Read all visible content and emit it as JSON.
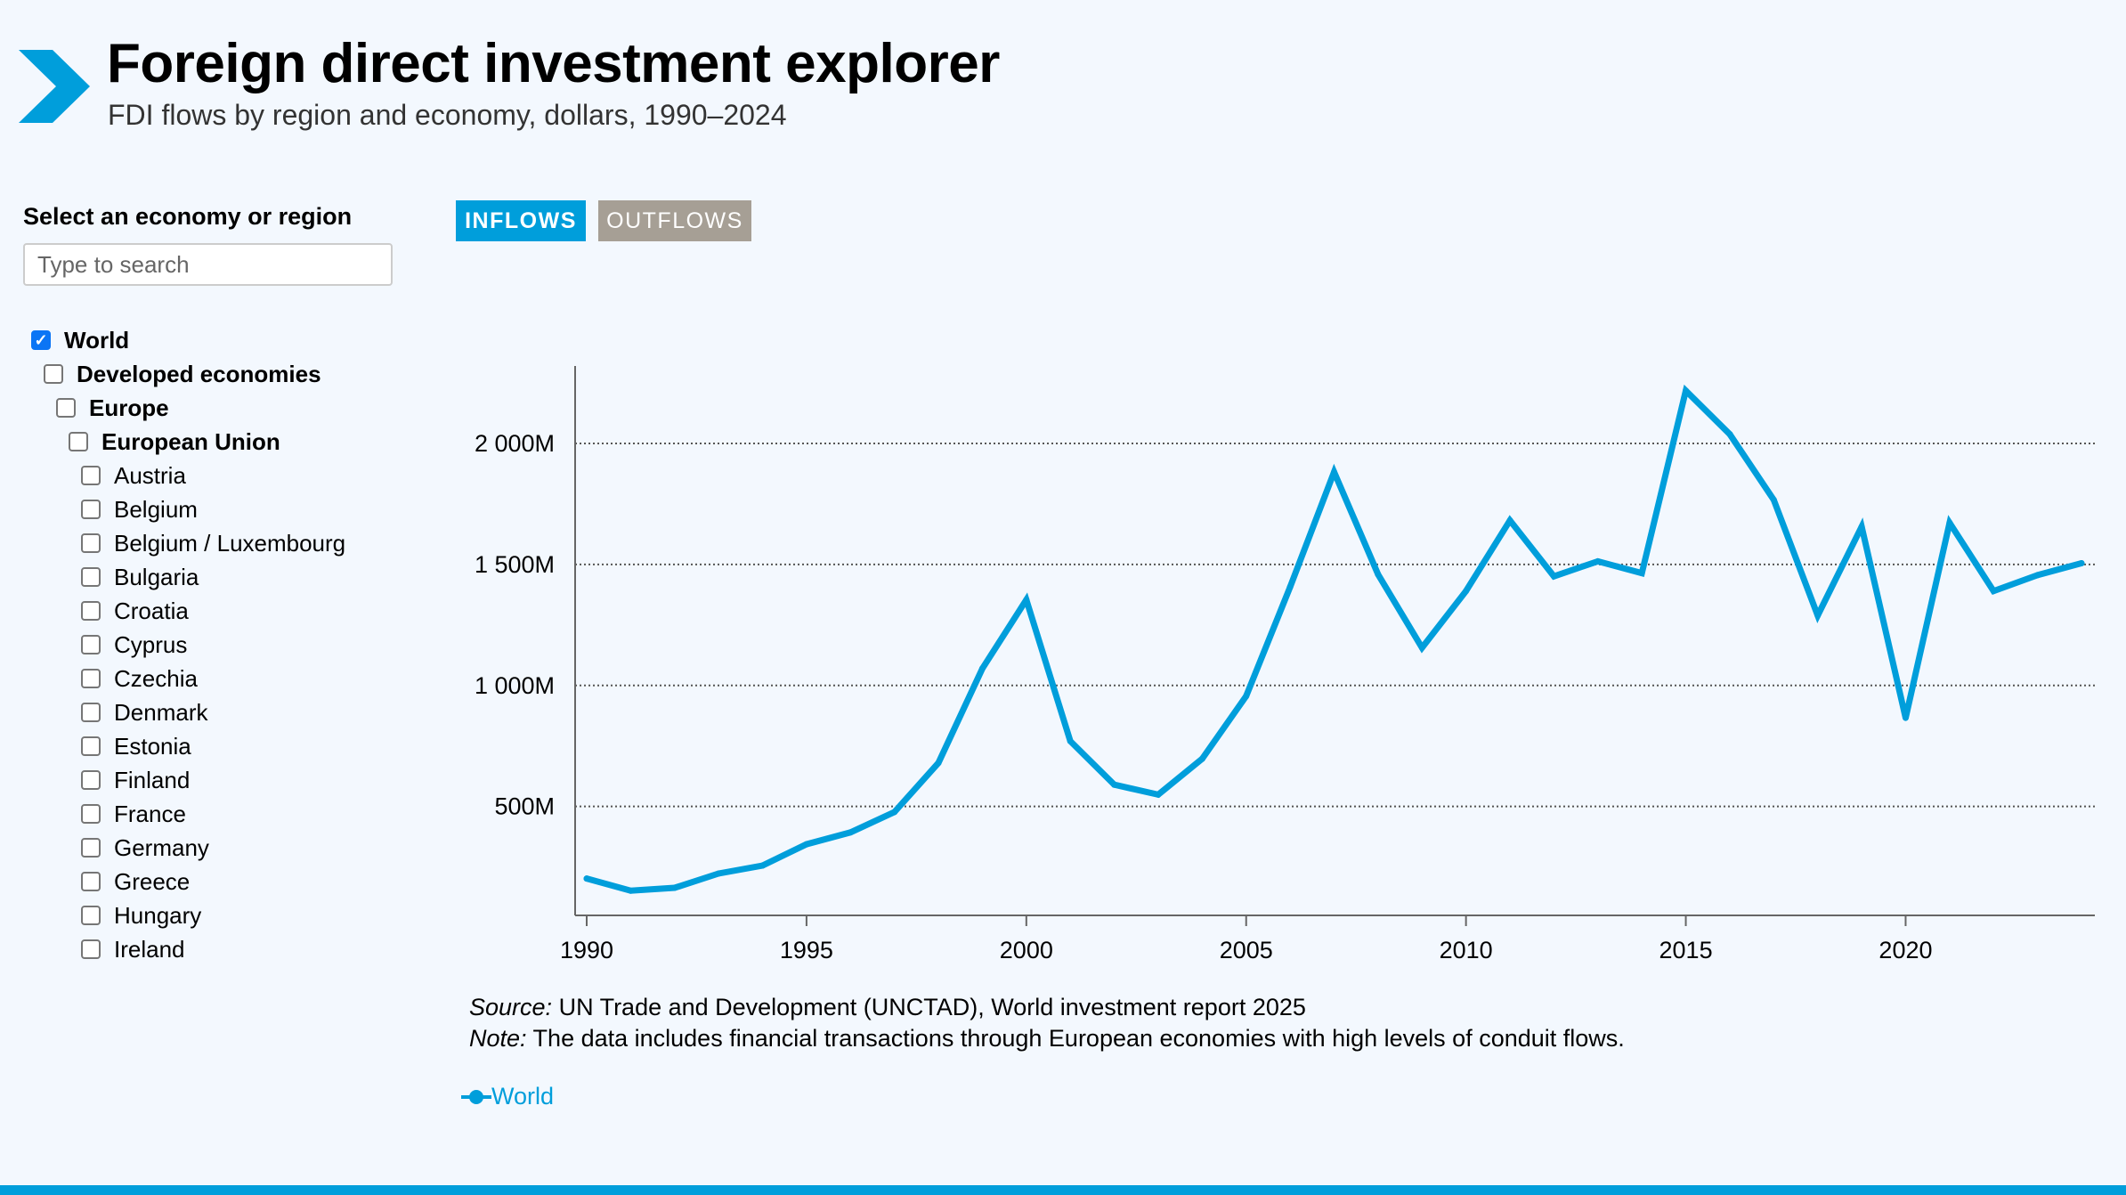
{
  "header": {
    "title": "Foreign direct investment explorer",
    "subtitle": "FDI flows by region and economy, dollars, 1990–2024",
    "logo_icon": "chevron-right-icon",
    "brand_color": "#009edb"
  },
  "sidebar": {
    "label": "Select an economy or region",
    "search_placeholder": "Type to search",
    "items": [
      {
        "label": "World",
        "level": 0,
        "checked": true,
        "bold": true
      },
      {
        "label": "Developed economies",
        "level": 1,
        "checked": false,
        "bold": true
      },
      {
        "label": "Europe",
        "level": 2,
        "checked": false,
        "bold": true
      },
      {
        "label": "European Union",
        "level": 3,
        "checked": false,
        "bold": true
      },
      {
        "label": "Austria",
        "level": 4,
        "checked": false,
        "bold": false
      },
      {
        "label": "Belgium",
        "level": 4,
        "checked": false,
        "bold": false
      },
      {
        "label": "Belgium / Luxembourg",
        "level": 4,
        "checked": false,
        "bold": false
      },
      {
        "label": "Bulgaria",
        "level": 4,
        "checked": false,
        "bold": false
      },
      {
        "label": "Croatia",
        "level": 4,
        "checked": false,
        "bold": false
      },
      {
        "label": "Cyprus",
        "level": 4,
        "checked": false,
        "bold": false
      },
      {
        "label": "Czechia",
        "level": 4,
        "checked": false,
        "bold": false
      },
      {
        "label": "Denmark",
        "level": 4,
        "checked": false,
        "bold": false
      },
      {
        "label": "Estonia",
        "level": 4,
        "checked": false,
        "bold": false
      },
      {
        "label": "Finland",
        "level": 4,
        "checked": false,
        "bold": false
      },
      {
        "label": "France",
        "level": 4,
        "checked": false,
        "bold": false
      },
      {
        "label": "Germany",
        "level": 4,
        "checked": false,
        "bold": false
      },
      {
        "label": "Greece",
        "level": 4,
        "checked": false,
        "bold": false
      },
      {
        "label": "Hungary",
        "level": 4,
        "checked": false,
        "bold": false
      },
      {
        "label": "Ireland",
        "level": 4,
        "checked": false,
        "bold": false
      }
    ]
  },
  "tabs": {
    "inflows": "INFLOWS",
    "outflows": "OUTFLOWS",
    "active": "inflows",
    "active_color": "#009edb",
    "inactive_color": "#a69f95"
  },
  "chart_data": {
    "type": "line",
    "x": [
      1990,
      1991,
      1992,
      1993,
      1994,
      1995,
      1996,
      1997,
      1998,
      1999,
      2000,
      2001,
      2002,
      2003,
      2004,
      2005,
      2006,
      2007,
      2008,
      2009,
      2010,
      2011,
      2012,
      2013,
      2014,
      2015,
      2016,
      2017,
      2018,
      2019,
      2020,
      2021,
      2022,
      2023,
      2024
    ],
    "series": [
      {
        "name": "World",
        "color": "#009edb",
        "values": [
          202,
          152,
          164,
          223,
          256,
          344,
          393,
          477,
          680,
          1070,
          1354,
          770,
          590,
          549,
          697,
          956,
          1407,
          1882,
          1459,
          1156,
          1390,
          1682,
          1451,
          1513,
          1464,
          2218,
          2038,
          1767,
          1289,
          1656,
          866,
          1672,
          1390,
          1456,
          1505
        ]
      }
    ],
    "xticks": [
      "1990",
      "1995",
      "2000",
      "2005",
      "2010",
      "2015",
      "2020"
    ],
    "yticks": [
      {
        "value": 500,
        "label": "500M"
      },
      {
        "value": 1000,
        "label": "1 000M"
      },
      {
        "value": 1500,
        "label": "1 500M"
      },
      {
        "value": 2000,
        "label": "2 000M"
      }
    ],
    "ylim": [
      50,
      2320
    ],
    "xlim": [
      1990,
      2024
    ],
    "grid": "horizontal dotted",
    "legend_placement": "bottom-left"
  },
  "notes": {
    "source_label": "Source:",
    "source_text": " UN Trade and Development (UNCTAD), World investment report 2025",
    "note_label": "Note:",
    "note_text": " The data includes financial transactions through European economies with high levels of conduit flows."
  },
  "legend": {
    "label": "World"
  }
}
